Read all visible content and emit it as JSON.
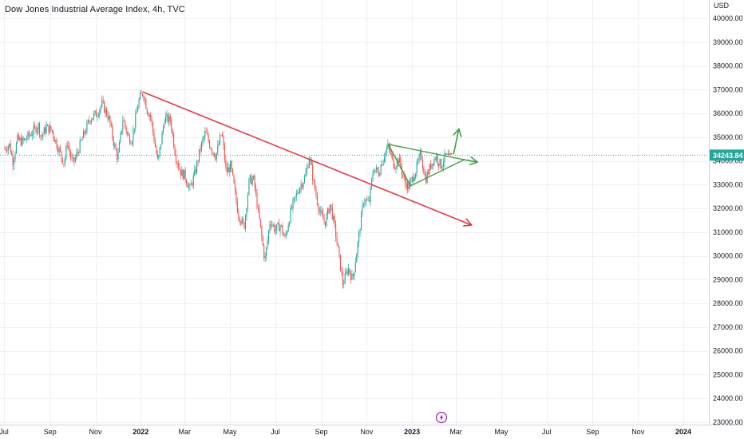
{
  "header": {
    "title": "Dow Jones Industrial Average Index, 4h, TVC"
  },
  "icons": {
    "flash": "lightning-icon"
  },
  "colors": {
    "up": "#26a69a",
    "down": "#ef5350",
    "resistance_line": "#e53945",
    "triangle": "#43a047",
    "price_label_bg": "#26a69a",
    "price_line": "#26a69a",
    "flash_icon": "#9c27b0"
  },
  "chart_data": {
    "type": "candlestick",
    "title": "Dow Jones Industrial Average Index, 4h, TVC",
    "currency": "USD",
    "last_price_label": "34243.84",
    "last_price": 34243.84,
    "ylim": [
      23000,
      40500
    ],
    "y_ticks": [
      {
        "value": 23000,
        "label": "23000.00"
      },
      {
        "value": 24000,
        "label": "24000.00"
      },
      {
        "value": 25000,
        "label": "25000.00"
      },
      {
        "value": 26000,
        "label": "26000.00"
      },
      {
        "value": 27000,
        "label": "27000.00"
      },
      {
        "value": 28000,
        "label": "28000.00"
      },
      {
        "value": 29000,
        "label": "29000.00"
      },
      {
        "value": 30000,
        "label": "30000.00"
      },
      {
        "value": 31000,
        "label": "31000.00"
      },
      {
        "value": 32000,
        "label": "32000.00"
      },
      {
        "value": 33000,
        "label": "33000.00"
      },
      {
        "value": 34000,
        "label": "34000.00"
      },
      {
        "value": 35000,
        "label": "35000.00"
      },
      {
        "value": 36000,
        "label": "36000.00"
      },
      {
        "value": 37000,
        "label": "37000.00"
      },
      {
        "value": 38000,
        "label": "38000.00"
      },
      {
        "value": 39000,
        "label": "39000.00"
      },
      {
        "value": 40000,
        "label": "40000.00"
      }
    ],
    "x_ticks": [
      {
        "date": "2021-07-01",
        "label": "Jul",
        "bold": false
      },
      {
        "date": "2021-09-01",
        "label": "Sep",
        "bold": false
      },
      {
        "date": "2021-11-01",
        "label": "Nov",
        "bold": false
      },
      {
        "date": "2022-01-01",
        "label": "2022",
        "bold": true
      },
      {
        "date": "2022-03-01",
        "label": "Mar",
        "bold": false
      },
      {
        "date": "2022-05-01",
        "label": "May",
        "bold": false
      },
      {
        "date": "2022-07-01",
        "label": "Jul",
        "bold": false
      },
      {
        "date": "2022-09-01",
        "label": "Sep",
        "bold": false
      },
      {
        "date": "2022-11-01",
        "label": "Nov",
        "bold": false
      },
      {
        "date": "2023-01-01",
        "label": "2023",
        "bold": true
      },
      {
        "date": "2023-03-01",
        "label": "Mar",
        "bold": false
      },
      {
        "date": "2023-05-01",
        "label": "May",
        "bold": false
      },
      {
        "date": "2023-07-01",
        "label": "Jul",
        "bold": false
      },
      {
        "date": "2023-09-01",
        "label": "Sep",
        "bold": false
      },
      {
        "date": "2023-11-01",
        "label": "Nov",
        "bold": false
      },
      {
        "date": "2024-01-01",
        "label": "2024",
        "bold": true
      }
    ],
    "price_path": [
      [
        "2021-07-02",
        34500
      ],
      [
        "2021-07-08",
        34700
      ],
      [
        "2021-07-13",
        34000
      ],
      [
        "2021-07-19",
        34900
      ],
      [
        "2021-07-26",
        34800
      ],
      [
        "2021-08-05",
        35100
      ],
      [
        "2021-08-16",
        35500
      ],
      [
        "2021-08-20",
        35000
      ],
      [
        "2021-08-27",
        35400
      ],
      [
        "2021-09-03",
        35300
      ],
      [
        "2021-09-10",
        34700
      ],
      [
        "2021-09-20",
        33900
      ],
      [
        "2021-09-24",
        34800
      ],
      [
        "2021-10-01",
        33900
      ],
      [
        "2021-10-05",
        34100
      ],
      [
        "2021-10-15",
        35000
      ],
      [
        "2021-10-25",
        35800
      ],
      [
        "2021-11-03",
        36000
      ],
      [
        "2021-11-10",
        36400
      ],
      [
        "2021-11-19",
        35800
      ],
      [
        "2021-11-26",
        34700
      ],
      [
        "2021-12-01",
        34100
      ],
      [
        "2021-12-08",
        35800
      ],
      [
        "2021-12-15",
        35000
      ],
      [
        "2021-12-20",
        34900
      ],
      [
        "2021-12-29",
        36500
      ],
      [
        "2022-01-04",
        36900
      ],
      [
        "2022-01-10",
        36100
      ],
      [
        "2022-01-14",
        35900
      ],
      [
        "2022-01-24",
        33900
      ],
      [
        "2022-02-02",
        35800
      ],
      [
        "2022-02-10",
        35700
      ],
      [
        "2022-02-17",
        34200
      ],
      [
        "2022-02-24",
        33500
      ],
      [
        "2022-03-01",
        33400
      ],
      [
        "2022-03-08",
        32800
      ],
      [
        "2022-03-15",
        33500
      ],
      [
        "2022-03-22",
        34500
      ],
      [
        "2022-03-29",
        35200
      ],
      [
        "2022-04-05",
        34600
      ],
      [
        "2022-04-12",
        34200
      ],
      [
        "2022-04-20",
        35200
      ],
      [
        "2022-04-26",
        33500
      ],
      [
        "2022-05-02",
        33800
      ],
      [
        "2022-05-12",
        31800
      ],
      [
        "2022-05-20",
        31200
      ],
      [
        "2022-05-27",
        33200
      ],
      [
        "2022-06-02",
        33200
      ],
      [
        "2022-06-10",
        31400
      ],
      [
        "2022-06-17",
        29800
      ],
      [
        "2022-06-24",
        31500
      ],
      [
        "2022-07-01",
        31100
      ],
      [
        "2022-07-08",
        31300
      ],
      [
        "2022-07-14",
        30700
      ],
      [
        "2022-07-22",
        31900
      ],
      [
        "2022-08-01",
        32800
      ],
      [
        "2022-08-10",
        33300
      ],
      [
        "2022-08-16",
        34200
      ],
      [
        "2022-08-22",
        33000
      ],
      [
        "2022-08-30",
        31800
      ],
      [
        "2022-09-06",
        31400
      ],
      [
        "2022-09-13",
        32200
      ],
      [
        "2022-09-20",
        31000
      ],
      [
        "2022-09-30",
        28800
      ],
      [
        "2022-10-07",
        29500
      ],
      [
        "2022-10-13",
        29000
      ],
      [
        "2022-10-20",
        30500
      ],
      [
        "2022-10-28",
        32400
      ],
      [
        "2022-11-04",
        32200
      ],
      [
        "2022-11-10",
        33700
      ],
      [
        "2022-11-17",
        33500
      ],
      [
        "2022-11-25",
        34300
      ],
      [
        "2022-11-30",
        34600
      ],
      [
        "2022-12-08",
        33800
      ],
      [
        "2022-12-14",
        34100
      ],
      [
        "2022-12-22",
        33100
      ],
      [
        "2022-12-28",
        32900
      ],
      [
        "2023-01-06",
        33600
      ],
      [
        "2023-01-13",
        34300
      ],
      [
        "2023-01-19",
        33200
      ],
      [
        "2023-01-27",
        33900
      ],
      [
        "2023-02-02",
        34200
      ],
      [
        "2023-02-09",
        33800
      ],
      [
        "2023-02-15",
        34200
      ],
      [
        "2023-02-21",
        34100
      ],
      [
        "2023-02-24",
        34243
      ]
    ],
    "drawings": {
      "resistance_line": [
        [
          "2022-01-04",
          36900
        ],
        [
          "2023-03-22",
          31300
        ]
      ],
      "triangle_upper": [
        [
          "2022-11-30",
          34700
        ],
        [
          "2023-03-12",
          34050
        ]
      ],
      "triangle_lower": [
        [
          "2022-12-30",
          32950
        ],
        [
          "2023-03-12",
          34050
        ]
      ],
      "arrow_up": [
        [
          "2023-02-26",
          34300
        ],
        [
          "2023-03-05",
          35350
        ]
      ],
      "arrow_right": [
        [
          "2023-03-12",
          34050
        ],
        [
          "2023-03-30",
          33950
        ]
      ]
    }
  }
}
